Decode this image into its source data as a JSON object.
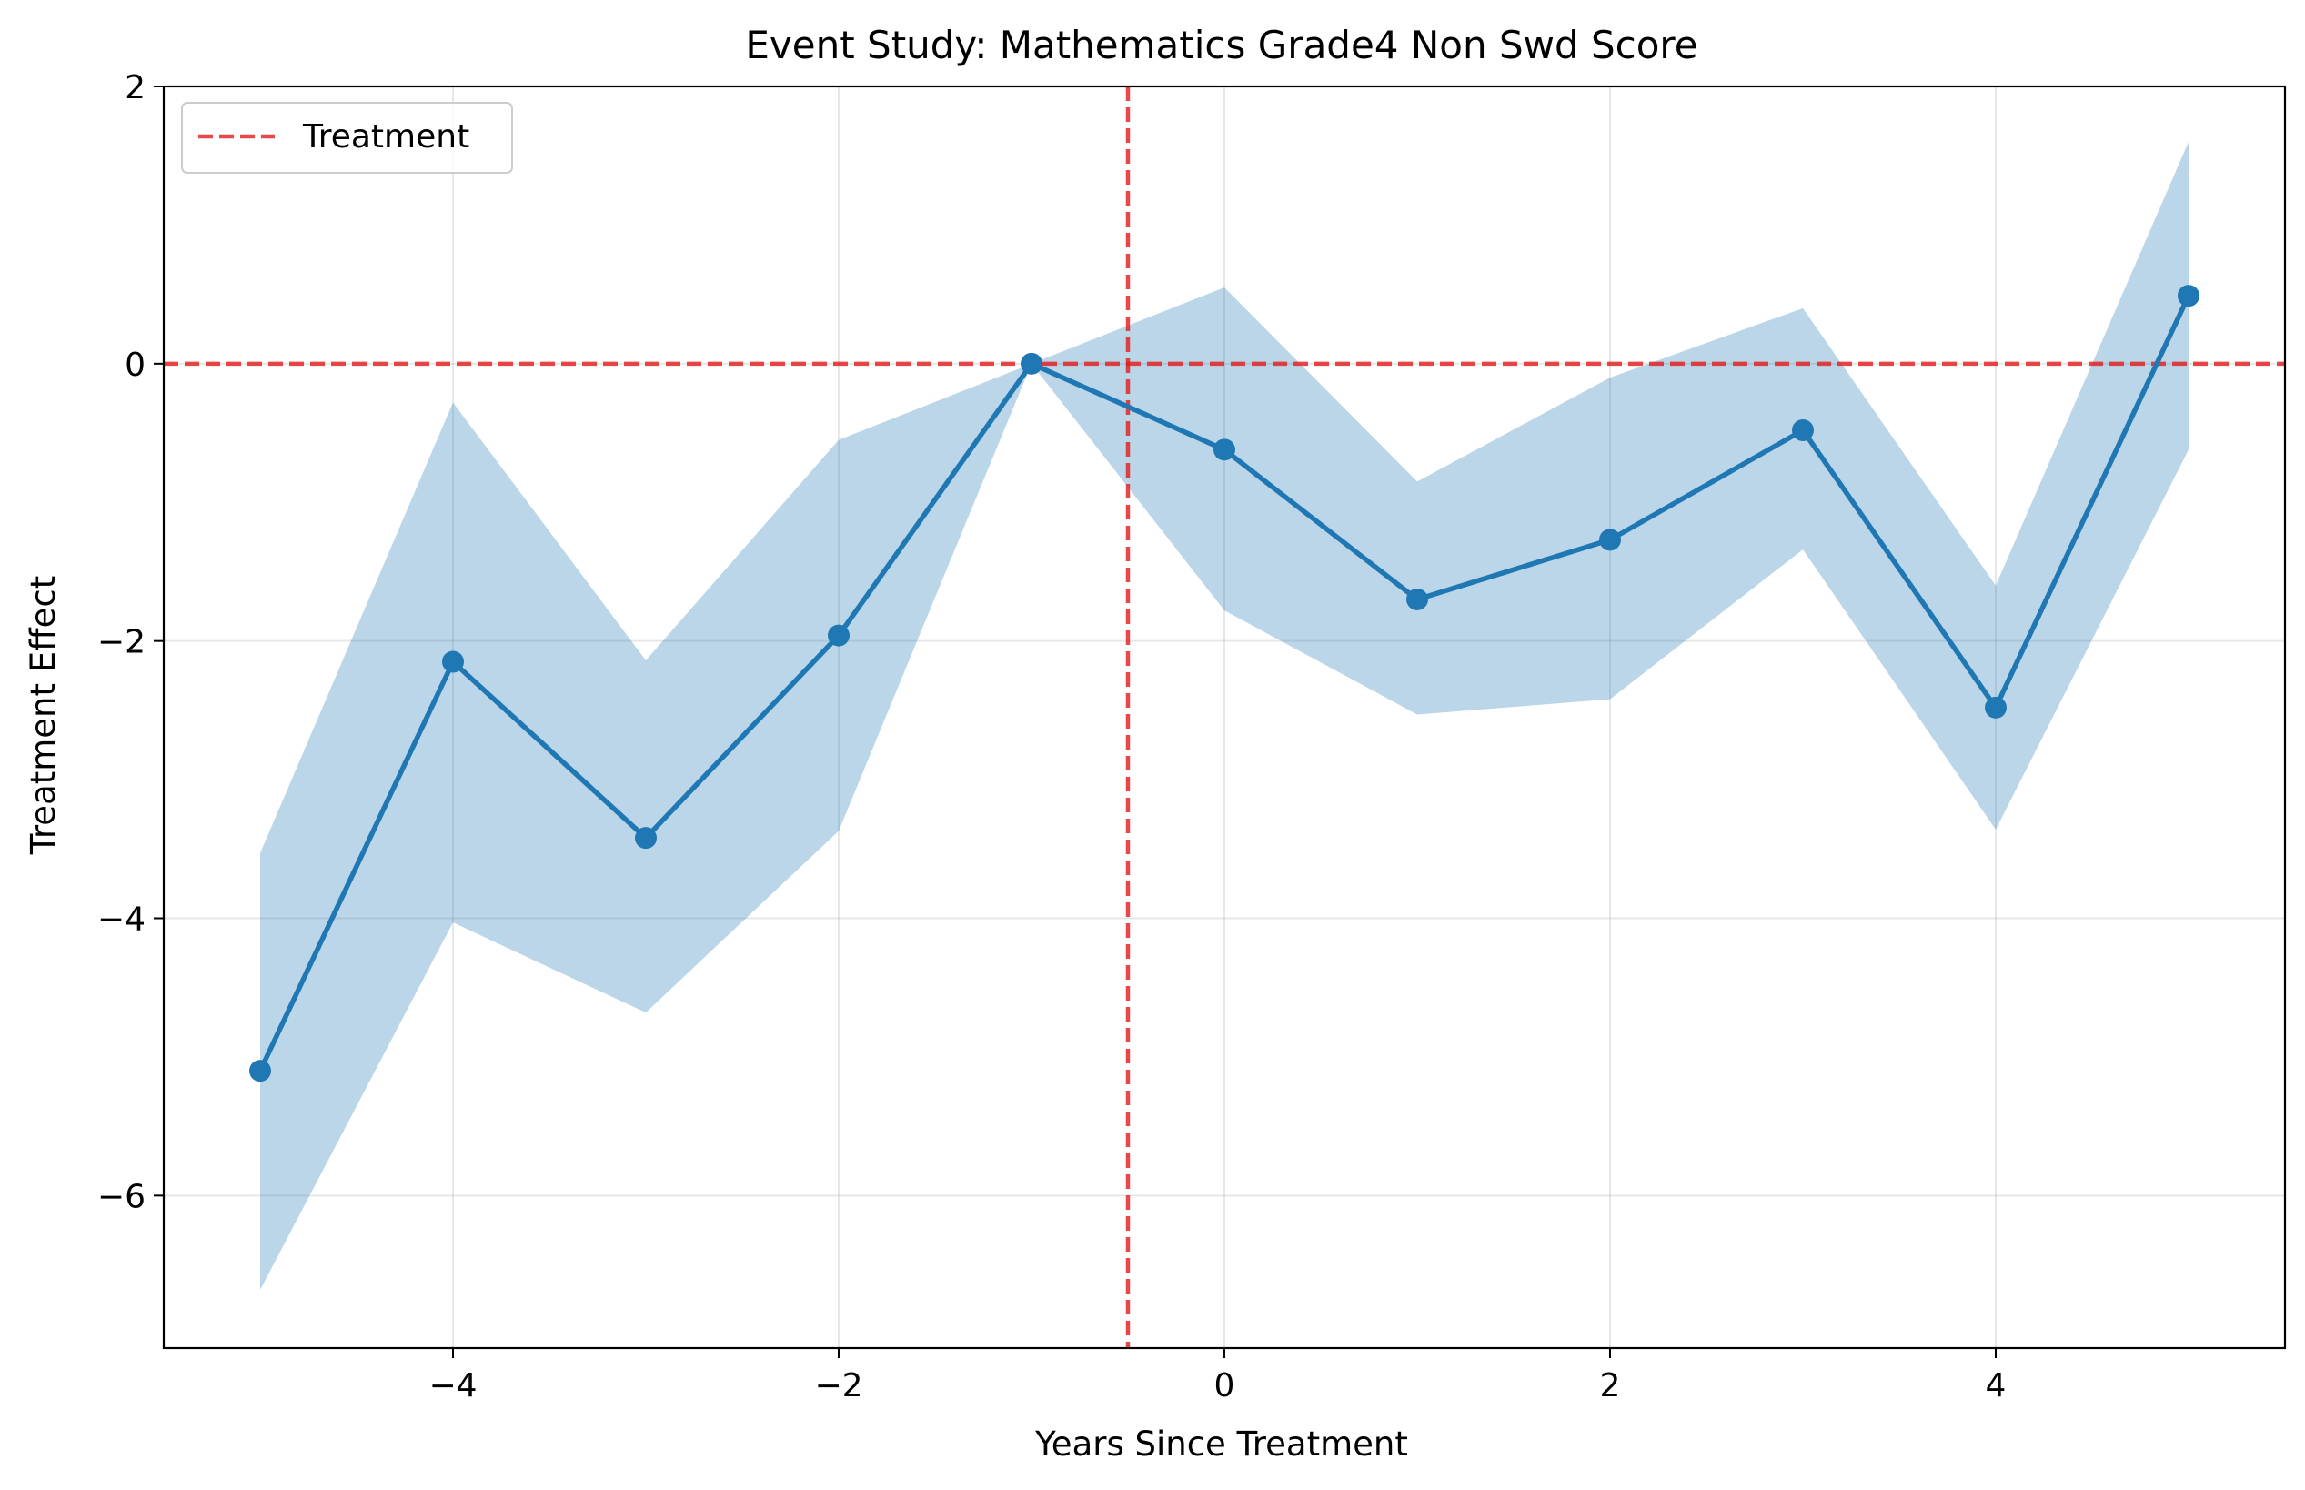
{
  "chart_data": {
    "type": "line",
    "title": "Event Study: Mathematics Grade4 Non Swd Score",
    "xlabel": "Years Since Treatment",
    "ylabel": "Treatment Effect",
    "xlim": [
      -5.5,
      5.5
    ],
    "ylim": [
      -7.1,
      2.0
    ],
    "xticks": [
      -4,
      -2,
      0,
      2,
      4
    ],
    "xtick_labels": [
      "−4",
      "−2",
      "0",
      "2",
      "4"
    ],
    "yticks": [
      -6,
      -4,
      -2,
      0,
      2
    ],
    "ytick_labels": [
      "−6",
      "−4",
      "−2",
      "0",
      "2"
    ],
    "grid": true,
    "legend_position": "top-left",
    "series": [
      {
        "x": [
          -5,
          -4,
          -3,
          -2,
          -1,
          0,
          1,
          2,
          3,
          4,
          5
        ],
        "y": [
          -5.1,
          -2.15,
          -3.42,
          -1.96,
          0.0,
          -0.62,
          -1.7,
          -1.27,
          -0.48,
          -2.48,
          0.49
        ],
        "ci_lower": [
          -6.68,
          -4.03,
          -4.68,
          -3.37,
          0.0,
          -1.78,
          -2.53,
          -2.42,
          -1.34,
          -3.36,
          -0.62
        ],
        "ci_upper": [
          -3.53,
          -0.28,
          -2.14,
          -0.55,
          0.0,
          0.55,
          -0.85,
          -0.1,
          0.4,
          -1.6,
          1.6
        ],
        "color": "#1f77b4",
        "band_color": "#1f77b4"
      }
    ],
    "reference_lines": [
      {
        "orientation": "horizontal",
        "value": 0,
        "color": "#e41a1c",
        "style": "dashed",
        "legend": "Treatment"
      },
      {
        "orientation": "vertical",
        "value": -0.5,
        "color": "#e41a1c",
        "style": "dashed"
      }
    ],
    "legend": [
      {
        "label": "Treatment",
        "color": "#e41a1c",
        "style": "dashed"
      }
    ]
  }
}
